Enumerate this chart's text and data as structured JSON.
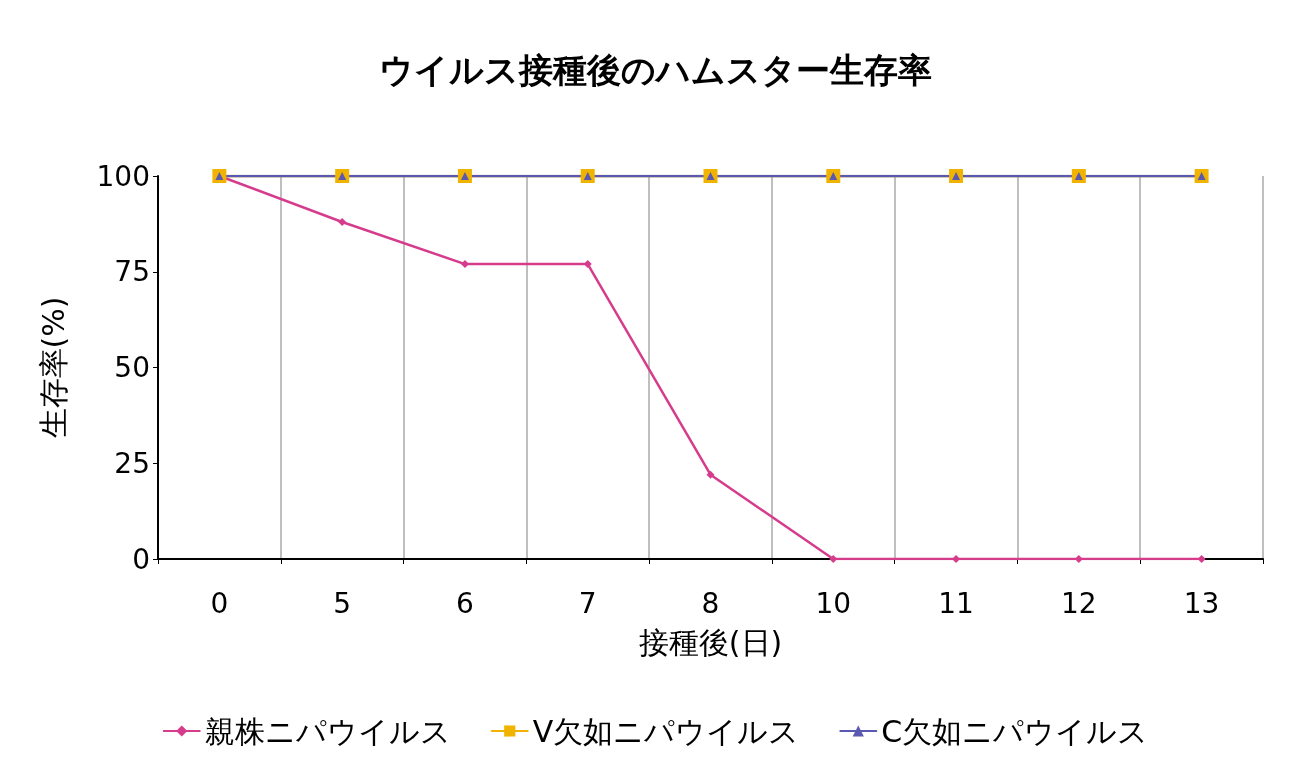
{
  "chart_data": {
    "type": "line",
    "title": "ウイルス接種後のハムスター生存率",
    "xlabel": "接種後(日)",
    "ylabel": "生存率(%)",
    "categories": [
      "0",
      "5",
      "6",
      "7",
      "8",
      "10",
      "11",
      "12",
      "13"
    ],
    "series": [
      {
        "name": "親株ニパウイルス",
        "color": "#d63c8c",
        "marker": "diamond",
        "values": [
          100,
          88,
          77,
          77,
          22,
          0,
          0,
          0,
          0
        ]
      },
      {
        "name": "V欠如ニパウイルス",
        "color": "#f0b400",
        "marker": "square",
        "values": [
          100,
          100,
          100,
          100,
          100,
          100,
          100,
          100,
          100
        ]
      },
      {
        "name": "C欠如ニパウイルス",
        "color": "#5a58b0",
        "marker": "triangle",
        "values": [
          100,
          100,
          100,
          100,
          100,
          100,
          100,
          100,
          100
        ]
      }
    ],
    "ylim": [
      0,
      100
    ],
    "yticks": [
      0,
      25,
      50,
      75,
      100
    ],
    "grid": "x",
    "legend": "bottom",
    "line_style": "solid"
  }
}
